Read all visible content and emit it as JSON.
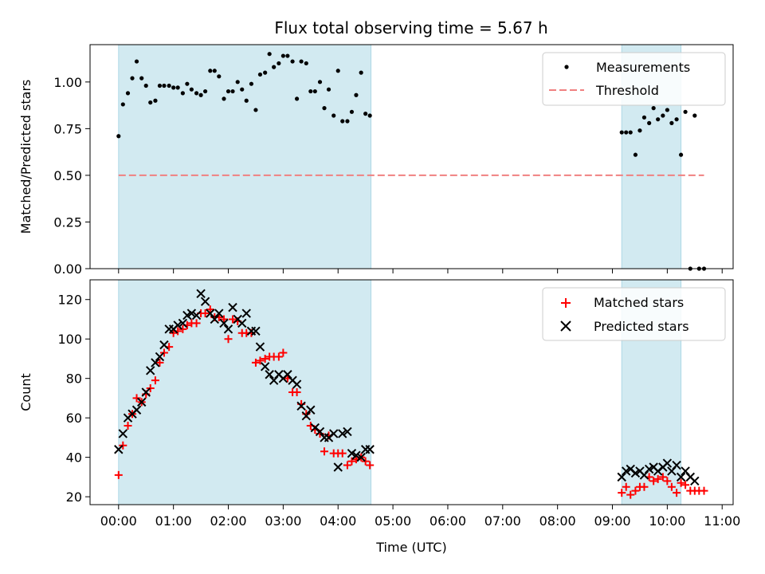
{
  "chart_data": {
    "title": "Flux total observing time = 5.67 h",
    "xlabel": "Time (UTC)",
    "x_ticks": [
      "00:00",
      "01:00",
      "02:00",
      "03:00",
      "04:00",
      "05:00",
      "06:00",
      "07:00",
      "08:00",
      "09:00",
      "10:00",
      "11:00"
    ],
    "x_unit": "hours",
    "xlim": [
      -0.52,
      11.2
    ],
    "shaded_intervals": [
      [
        0.0,
        4.6
      ],
      [
        9.17,
        10.25
      ]
    ],
    "colors": {
      "shade": "#add8e6",
      "measurement": "#000000",
      "threshold": "#f08080",
      "matched": "#ff0000",
      "predicted": "#000000"
    },
    "panels": [
      {
        "type": "scatter",
        "ylabel": "Matched/Predicted stars",
        "ylim": [
          0,
          1.2
        ],
        "y_ticks": [
          "0.00",
          "0.25",
          "0.50",
          "0.75",
          "1.00"
        ],
        "y_tick_values": [
          0,
          0.25,
          0.5,
          0.75,
          1.0
        ],
        "legend": {
          "placement": "top-right",
          "entries": [
            "Measurements",
            "Threshold"
          ]
        },
        "threshold": {
          "name": "Threshold",
          "value": 0.5,
          "x_range": [
            0.0,
            10.67
          ]
        },
        "series": [
          {
            "name": "Measurements",
            "x": [
              0.0,
              0.08,
              0.17,
              0.25,
              0.33,
              0.42,
              0.5,
              0.58,
              0.67,
              0.75,
              0.83,
              0.92,
              1.0,
              1.08,
              1.17,
              1.25,
              1.33,
              1.42,
              1.5,
              1.58,
              1.67,
              1.75,
              1.83,
              1.92,
              2.0,
              2.08,
              2.17,
              2.25,
              2.33,
              2.42,
              2.5,
              2.58,
              2.67,
              2.75,
              2.83,
              2.92,
              3.0,
              3.08,
              3.17,
              3.25,
              3.33,
              3.42,
              3.5,
              3.58,
              3.67,
              3.75,
              3.83,
              3.92,
              4.0,
              4.08,
              4.17,
              4.25,
              4.33,
              4.42,
              4.5,
              4.58,
              9.17,
              9.25,
              9.33,
              9.42,
              9.5,
              9.58,
              9.67,
              9.75,
              9.83,
              9.92,
              10.0,
              10.08,
              10.17,
              10.25,
              10.33,
              10.42,
              10.5,
              10.58,
              10.67
            ],
            "y": [
              0.71,
              0.88,
              0.94,
              1.02,
              1.11,
              1.02,
              0.98,
              0.89,
              0.9,
              0.98,
              0.98,
              0.98,
              0.97,
              0.97,
              0.94,
              0.99,
              0.96,
              0.94,
              0.93,
              0.95,
              1.06,
              1.06,
              1.03,
              0.91,
              0.95,
              0.95,
              1.0,
              0.96,
              0.9,
              0.99,
              0.85,
              1.04,
              1.05,
              1.15,
              1.08,
              1.1,
              1.14,
              1.14,
              1.11,
              0.91,
              1.11,
              1.1,
              0.95,
              0.95,
              1.0,
              0.86,
              0.96,
              0.82,
              1.06,
              0.79,
              0.79,
              0.84,
              0.93,
              1.05,
              0.83,
              0.82,
              0.73,
              0.73,
              0.73,
              0.61,
              0.74,
              0.81,
              0.78,
              0.86,
              0.8,
              0.82,
              0.85,
              0.78,
              0.8,
              0.61,
              0.84,
              0.0,
              0.82,
              0.0,
              0.0
            ]
          }
        ]
      },
      {
        "type": "scatter",
        "ylabel": "Count",
        "ylim": [
          16,
          130
        ],
        "y_ticks": [
          "20",
          "40",
          "60",
          "80",
          "100",
          "120"
        ],
        "y_tick_values": [
          20,
          40,
          60,
          80,
          100,
          120
        ],
        "legend": {
          "placement": "top-right",
          "entries": [
            "Matched stars",
            "Predicted stars"
          ]
        },
        "series": [
          {
            "name": "Matched stars",
            "marker": "plus",
            "x": [
              0.0,
              0.08,
              0.17,
              0.25,
              0.33,
              0.42,
              0.5,
              0.58,
              0.67,
              0.75,
              0.83,
              0.92,
              1.0,
              1.08,
              1.17,
              1.25,
              1.33,
              1.42,
              1.5,
              1.58,
              1.67,
              1.75,
              1.83,
              1.92,
              2.0,
              2.08,
              2.17,
              2.25,
              2.33,
              2.42,
              2.5,
              2.58,
              2.67,
              2.75,
              2.83,
              2.92,
              3.0,
              3.08,
              3.17,
              3.25,
              3.33,
              3.42,
              3.5,
              3.58,
              3.67,
              3.75,
              3.83,
              3.92,
              4.0,
              4.08,
              4.17,
              4.25,
              4.33,
              4.42,
              4.5,
              4.58,
              9.17,
              9.25,
              9.33,
              9.42,
              9.5,
              9.58,
              9.67,
              9.75,
              9.83,
              9.92,
              10.0,
              10.08,
              10.17,
              10.25,
              10.33,
              10.42,
              10.5,
              10.58,
              10.67
            ],
            "y": [
              31,
              46,
              56,
              62,
              70,
              68,
              72,
              75,
              79,
              88,
              93,
              96,
              103,
              104,
              105,
              107,
              108,
              108,
              113,
              113,
              115,
              111,
              111,
              110,
              100,
              110,
              109,
              103,
              103,
              103,
              88,
              89,
              90,
              91,
              91,
              91,
              93,
              80,
              73,
              73,
              67,
              62,
              56,
              54,
              52,
              43,
              51,
              42,
              42,
              42,
              36,
              38,
              39,
              40,
              38,
              36,
              22,
              25,
              21,
              23,
              25,
              25,
              30,
              28,
              29,
              30,
              28,
              25,
              22,
              27,
              26,
              23,
              23,
              23,
              23
            ]
          },
          {
            "name": "Predicted stars",
            "marker": "x",
            "x": [
              0.0,
              0.08,
              0.17,
              0.25,
              0.33,
              0.42,
              0.5,
              0.58,
              0.67,
              0.75,
              0.83,
              0.92,
              1.0,
              1.08,
              1.17,
              1.25,
              1.33,
              1.42,
              1.5,
              1.58,
              1.67,
              1.75,
              1.83,
              1.92,
              2.0,
              2.08,
              2.17,
              2.25,
              2.33,
              2.42,
              2.5,
              2.58,
              2.67,
              2.75,
              2.83,
              2.92,
              3.0,
              3.08,
              3.17,
              3.25,
              3.33,
              3.42,
              3.5,
              3.58,
              3.67,
              3.75,
              3.83,
              3.92,
              4.0,
              4.08,
              4.17,
              4.25,
              4.33,
              4.42,
              4.5,
              4.58,
              9.17,
              9.25,
              9.33,
              9.42,
              9.5,
              9.58,
              9.67,
              9.75,
              9.83,
              9.92,
              10.0,
              10.08,
              10.17,
              10.25,
              10.33,
              10.42,
              10.5
            ],
            "y": [
              44,
              52,
              60,
              62,
              64,
              68,
              73,
              84,
              88,
              91,
              97,
              105,
              105,
              107,
              108,
              112,
              113,
              112,
              123,
              119,
              113,
              110,
              113,
              108,
              105,
              116,
              110,
              108,
              113,
              104,
              104,
              96,
              86,
              82,
              79,
              82,
              80,
              82,
              79,
              77,
              66,
              61,
              64,
              55,
              53,
              50,
              50,
              52,
              35,
              52,
              53,
              42,
              41,
              40,
              44,
              44,
              30,
              33,
              34,
              32,
              33,
              31,
              34,
              35,
              33,
              35,
              37,
              33,
              36,
              30,
              33,
              30,
              28
            ]
          }
        ]
      }
    ]
  }
}
